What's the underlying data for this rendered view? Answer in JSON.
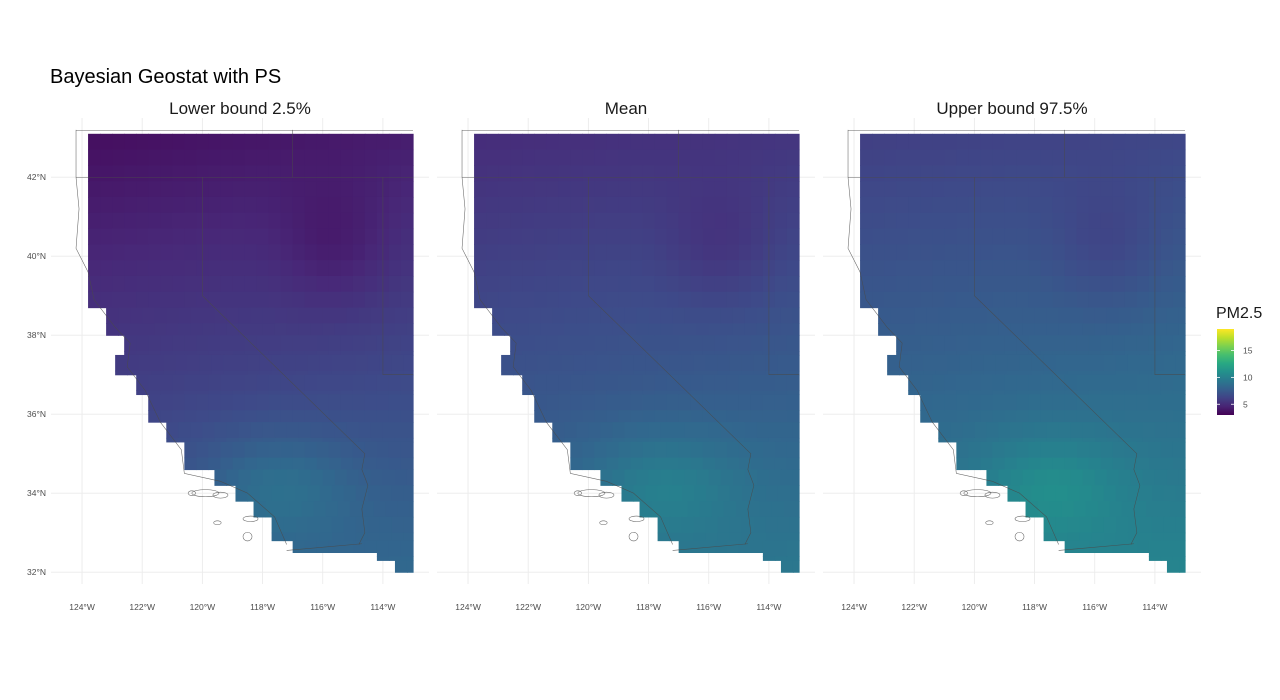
{
  "title": "Bayesian Geostat with PS",
  "colors": {
    "viridis": [
      "#440154",
      "#482878",
      "#3e4a89",
      "#31688e",
      "#26828e",
      "#1f9e89",
      "#35b779",
      "#6ece58",
      "#b5de2b",
      "#fde725"
    ],
    "grid": "#ebebeb",
    "border": "#4a4a4a"
  },
  "legend": {
    "title": "PM2.5",
    "ticks": [
      "5",
      "10",
      "15"
    ],
    "tick_values": [
      5,
      10,
      15
    ],
    "range": [
      3,
      19
    ]
  },
  "axes": {
    "x_ticks": [
      "124°W",
      "122°W",
      "120°W",
      "118°W",
      "116°W",
      "114°W"
    ],
    "x_values": [
      -124,
      -122,
      -120,
      -118,
      -116,
      -114
    ],
    "y_ticks": [
      "42°N",
      "40°N",
      "38°N",
      "36°N",
      "34°N",
      "32°N"
    ],
    "y_values": [
      42,
      40,
      38,
      36,
      34,
      32
    ],
    "lon_range": [
      -124.5,
      -113.0
    ],
    "lat_range": [
      31.7,
      43.5
    ]
  },
  "panels": [
    {
      "title": "Lower bound 2.5%",
      "level": [
        3.6,
        4.3,
        7.6,
        8.4
      ]
    },
    {
      "title": "Mean",
      "level": [
        5.0,
        5.5,
        8.6,
        9.4
      ]
    },
    {
      "title": "Upper bound 97.5%",
      "level": [
        6.0,
        6.4,
        9.5,
        10.3
      ]
    }
  ]
}
